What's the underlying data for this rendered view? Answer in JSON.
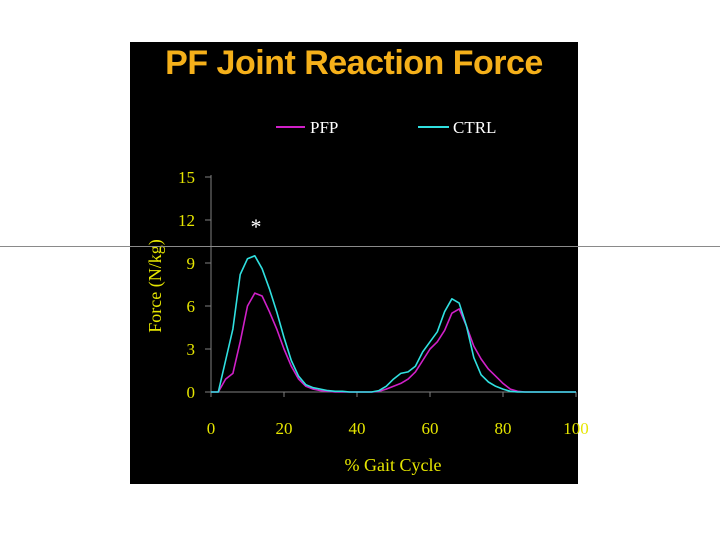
{
  "slide_title": "PF Joint Reaction Force",
  "colors": {
    "background": "#000000",
    "title": "#f5b01a",
    "axis_text": "#e6e600",
    "legend_text": "#ffffff",
    "pfp": "#d020c8",
    "ctrl": "#30e0e0"
  },
  "chart_data": {
    "type": "line",
    "title": "PF Joint Reaction Force",
    "xlabel": "% Gait Cycle",
    "ylabel": "Force (N/kg)",
    "xlim": [
      0,
      100
    ],
    "ylim": [
      0,
      15
    ],
    "xticks": [
      0,
      20,
      40,
      60,
      80,
      100
    ],
    "yticks": [
      0,
      3,
      6,
      9,
      12,
      15
    ],
    "legend_placement": "top",
    "annotation": "*",
    "series": [
      {
        "name": "PFP",
        "x": [
          0,
          2,
          4,
          6,
          8,
          10,
          12,
          14,
          16,
          18,
          20,
          22,
          24,
          26,
          28,
          30,
          32,
          34,
          36,
          38,
          40,
          42,
          44,
          46,
          48,
          50,
          52,
          54,
          56,
          58,
          60,
          62,
          64,
          66,
          68,
          70,
          72,
          74,
          76,
          78,
          80,
          82,
          84,
          86,
          88,
          90,
          92,
          94,
          96,
          98,
          100
        ],
        "y": [
          0,
          0,
          0.9,
          1.3,
          3.5,
          6.0,
          6.9,
          6.7,
          5.6,
          4.4,
          3.0,
          1.8,
          0.9,
          0.4,
          0.2,
          0.1,
          0.05,
          0,
          0,
          0,
          0,
          0,
          0,
          0.05,
          0.2,
          0.4,
          0.6,
          0.9,
          1.4,
          2.2,
          3.0,
          3.5,
          4.3,
          5.5,
          5.8,
          4.6,
          3.2,
          2.3,
          1.6,
          1.1,
          0.6,
          0.2,
          0.05,
          0,
          0,
          0,
          0,
          0,
          0,
          0,
          0
        ]
      },
      {
        "name": "CTRL",
        "x": [
          0,
          2,
          4,
          6,
          8,
          10,
          12,
          14,
          16,
          18,
          20,
          22,
          24,
          26,
          28,
          30,
          32,
          34,
          36,
          38,
          40,
          42,
          44,
          46,
          48,
          50,
          52,
          54,
          56,
          58,
          60,
          62,
          64,
          66,
          68,
          70,
          72,
          74,
          76,
          78,
          80,
          82,
          84,
          86,
          88,
          90,
          92,
          94,
          96,
          98,
          100
        ],
        "y": [
          0,
          0,
          2.2,
          4.4,
          8.2,
          9.3,
          9.5,
          8.6,
          7.2,
          5.6,
          3.8,
          2.2,
          1.1,
          0.5,
          0.3,
          0.2,
          0.1,
          0.05,
          0.05,
          0,
          0,
          0,
          0,
          0.1,
          0.4,
          0.9,
          1.3,
          1.4,
          1.8,
          2.8,
          3.5,
          4.2,
          5.6,
          6.5,
          6.2,
          4.6,
          2.4,
          1.2,
          0.7,
          0.4,
          0.2,
          0.05,
          0,
          0,
          0,
          0,
          0,
          0,
          0,
          0,
          0
        ]
      }
    ]
  }
}
